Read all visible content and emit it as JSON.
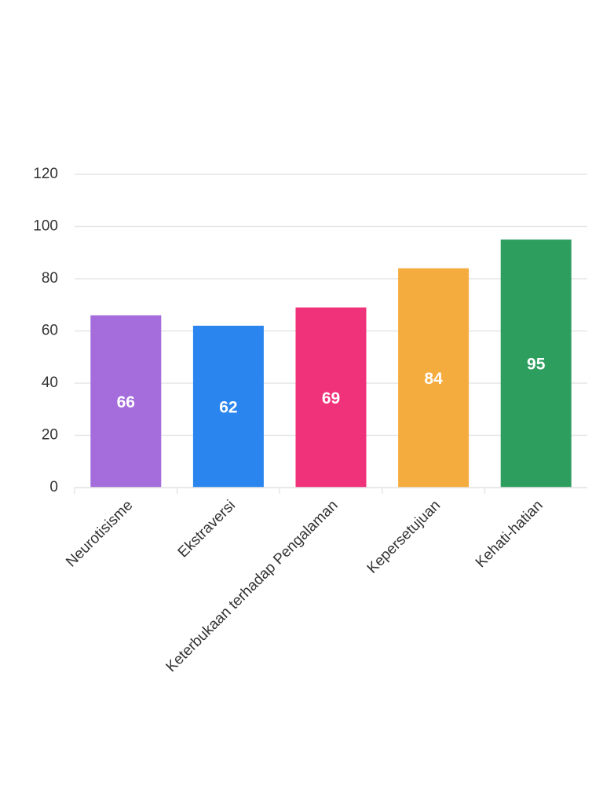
{
  "chart_data": {
    "type": "bar",
    "categories": [
      "Neurotisisme",
      "Ekstraversi",
      "Keterbukaan terhadap Pengalaman",
      "Kepersetujuan",
      "Kehati-hatian"
    ],
    "values": [
      66,
      62,
      69,
      84,
      95
    ],
    "colors": [
      "#a46ddb",
      "#2a86ee",
      "#f0327a",
      "#f4ac3e",
      "#2e9e5f"
    ],
    "ylim": [
      0,
      120
    ],
    "yticks": [
      0,
      20,
      40,
      60,
      80,
      100,
      120
    ],
    "grid": true
  }
}
